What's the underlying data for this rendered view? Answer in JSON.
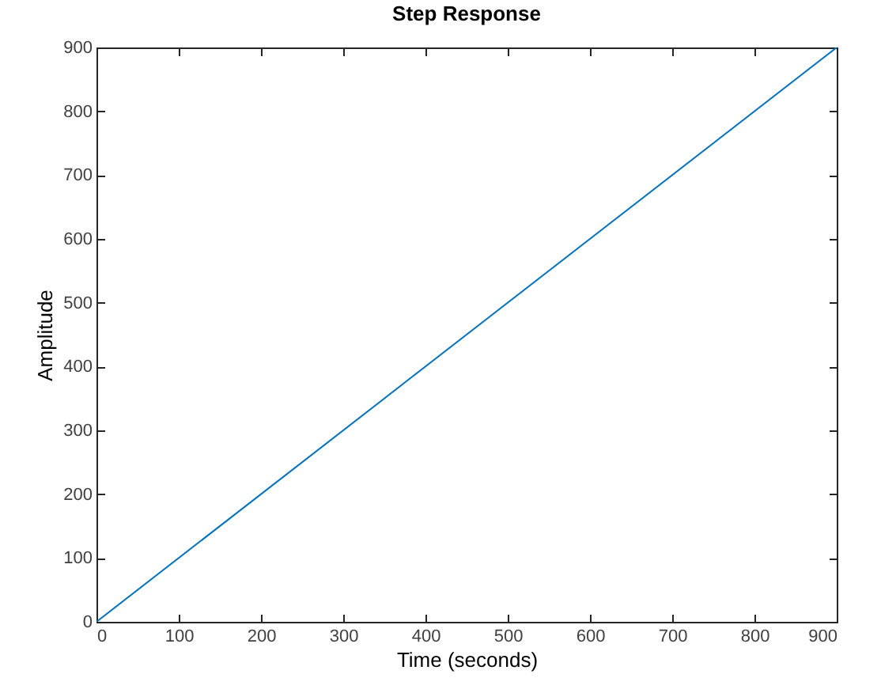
{
  "chart_data": {
    "type": "line",
    "title": "Step Response",
    "xlabel": "Time (seconds)",
    "ylabel": "Amplitude",
    "x": [
      0,
      900
    ],
    "series": [
      {
        "color": "#0072bd",
        "values": [
          0,
          900
        ]
      }
    ],
    "xlim": [
      0,
      900
    ],
    "xticks": [
      0,
      100,
      200,
      300,
      400,
      500,
      600,
      700,
      800,
      900
    ],
    "ylim": [
      0,
      900
    ],
    "yticks": [
      0,
      100,
      200,
      300,
      400,
      500,
      600,
      700,
      800,
      900
    ],
    "grid": false,
    "marker": "none",
    "line_style": "solid"
  }
}
